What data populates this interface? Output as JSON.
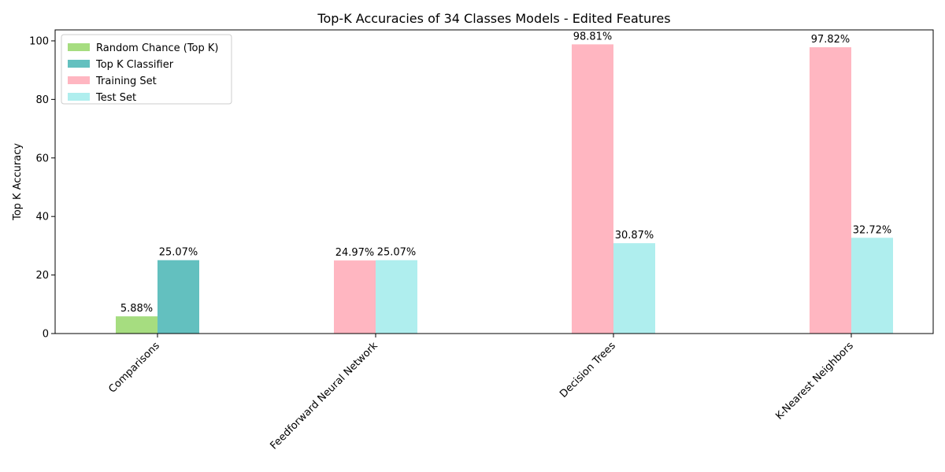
{
  "chart_data": {
    "type": "bar",
    "title": "Top-K Accuracies of 34 Classes Models - Edited Features",
    "xlabel": "",
    "ylabel": "Top K Accuracy",
    "ylim": [
      0,
      103.75
    ],
    "yticks": [
      0,
      20,
      40,
      60,
      80,
      100
    ],
    "grid": false,
    "legend_position": "top-left",
    "categories": [
      "Comparisons",
      "Feedforward Neural Network",
      "Decision Trees",
      "K-Nearest Neighbors"
    ],
    "series": [
      {
        "name": "Random Chance (Top K)",
        "color": "#a6dd80",
        "values": [
          5.88,
          null,
          null,
          null
        ],
        "labels": [
          "5.88%",
          null,
          null,
          null
        ]
      },
      {
        "name": "Top K Classifier",
        "color": "#63c0bf",
        "values": [
          25.07,
          null,
          null,
          null
        ],
        "labels": [
          "25.07%",
          null,
          null,
          null
        ]
      },
      {
        "name": "Training Set",
        "color": "#ffb6c1",
        "values": [
          null,
          24.97,
          98.81,
          97.82
        ],
        "labels": [
          null,
          "24.97%",
          "98.81%",
          "97.82%"
        ]
      },
      {
        "name": "Test Set",
        "color": "#afeeee",
        "values": [
          null,
          25.07,
          30.87,
          32.72
        ],
        "labels": [
          null,
          "25.07%",
          "30.87%",
          "32.72%"
        ]
      }
    ]
  }
}
